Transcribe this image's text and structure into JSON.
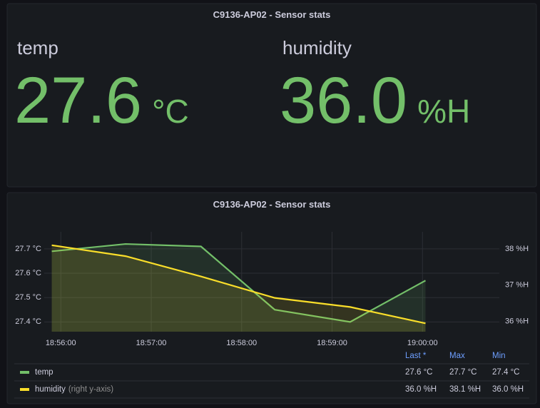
{
  "stat_panel": {
    "title": "C9136-AP02 - Sensor stats",
    "stats": [
      {
        "label": "temp",
        "value": "27.6",
        "unit": "°C"
      },
      {
        "label": "humidity",
        "value": "36.0",
        "unit": "%H"
      }
    ],
    "color": "#73bf69"
  },
  "chart_data": {
    "type": "line",
    "title": "C9136-AP02 - Sensor stats",
    "x": [
      "18:55:54",
      "18:56:43",
      "18:57:33",
      "18:58:22",
      "18:59:12",
      "19:00:02"
    ],
    "xlim": [
      "18:55:49",
      "19:00:51"
    ],
    "xticks": [
      "18:56:00",
      "18:57:00",
      "18:58:00",
      "18:59:00",
      "19:00:00"
    ],
    "ylim": [
      27.36,
      27.77
    ],
    "yticks": [
      {
        "value": 27.4,
        "label": "27.4 °C"
      },
      {
        "value": 27.5,
        "label": "27.5 °C"
      },
      {
        "value": 27.6,
        "label": "27.6 °C"
      },
      {
        "value": 27.7,
        "label": "27.7 °C"
      }
    ],
    "y2lim": [
      35.72,
      38.47
    ],
    "y2ticks": [
      {
        "value": 36,
        "label": "36 %H"
      },
      {
        "value": 37,
        "label": "37 %H"
      },
      {
        "value": 38,
        "label": "38 %H"
      }
    ],
    "grid": true,
    "legend": {
      "columns": [
        "Last *",
        "Max",
        "Min"
      ]
    },
    "series": [
      {
        "name": "temp",
        "color": "#73bf69",
        "values": [
          27.69,
          27.72,
          27.71,
          27.45,
          27.4,
          27.57
        ],
        "stats": [
          "27.6 °C",
          "27.7 °C",
          "27.4 °C"
        ]
      },
      {
        "name": "humidity",
        "color": "#fade2a",
        "axis": "y2",
        "values": [
          38.1,
          37.8,
          37.24,
          36.65,
          36.4,
          35.95
        ],
        "note": "(right y-axis)",
        "stats": [
          "36.0 %H",
          "38.1 %H",
          "36.0 %H"
        ]
      }
    ]
  }
}
